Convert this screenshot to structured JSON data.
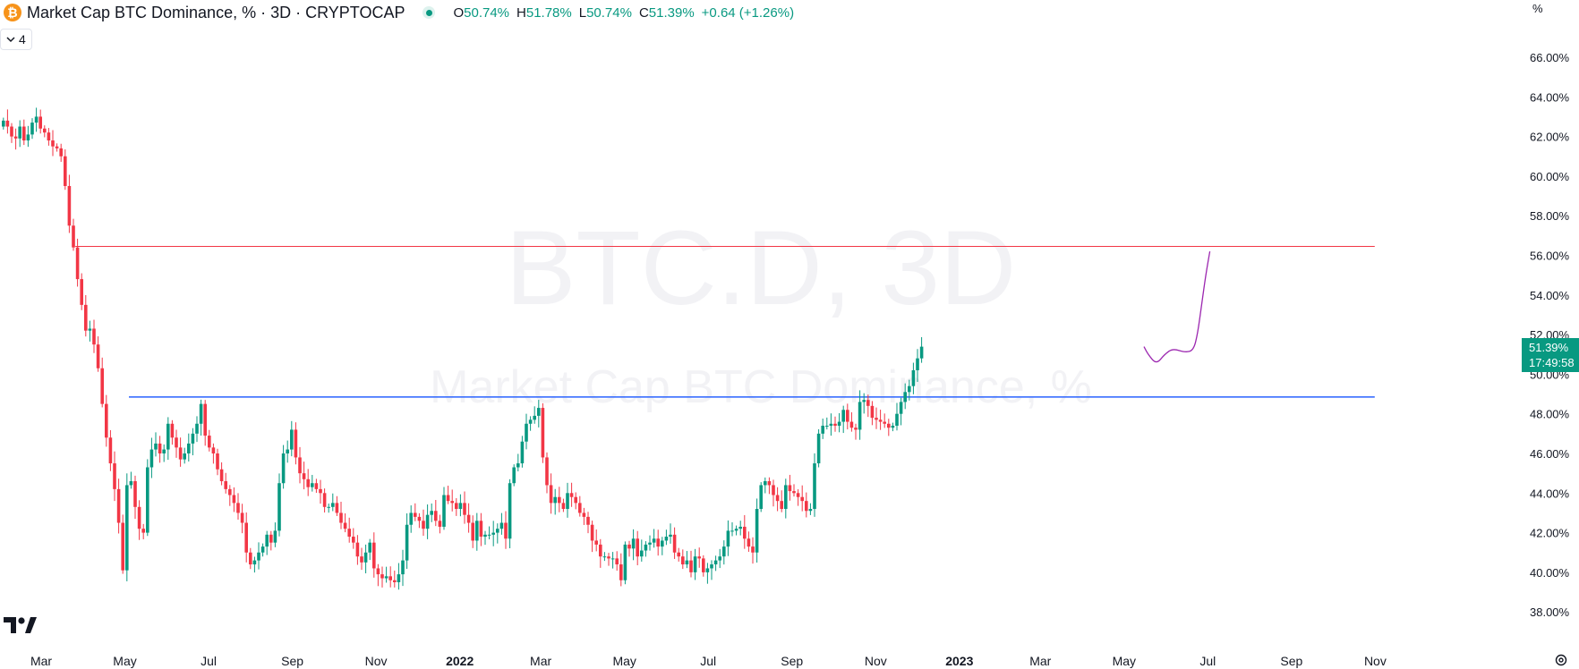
{
  "header": {
    "symbol_icon": "bitcoin-icon",
    "symbol_glyph": "₿",
    "title": "Market Cap BTC Dominance, % · 3D · CRYPTOCAP",
    "ohlc": {
      "o_label": "O",
      "o_value": "50.74%",
      "h_label": "H",
      "h_value": "51.78%",
      "l_label": "L",
      "l_value": "50.74%",
      "c_label": "C",
      "c_value": "51.39%",
      "change": "+0.64 (+1.26%)"
    },
    "collapse_count": "4"
  },
  "watermark": {
    "line1": "BTC.D, 3D",
    "line2": "Market Cap BTC Dominance, %"
  },
  "axis": {
    "unit_label": "%",
    "price_tag": "51.39%",
    "countdown": "17:49:58"
  },
  "colors": {
    "up": "#089981",
    "down": "#f23645",
    "blue_line": "#2962ff",
    "red_line": "#f23645",
    "projection": "#9c27b0"
  },
  "chart_data": {
    "type": "candlestick",
    "title": "Market Cap BTC Dominance, % · 3D · CRYPTOCAP",
    "y_axis": {
      "ticks": [
        "38.00%",
        "40.00%",
        "42.00%",
        "44.00%",
        "46.00%",
        "48.00%",
        "50.00%",
        "52.00%",
        "54.00%",
        "56.00%",
        "58.00%",
        "60.00%",
        "62.00%",
        "64.00%",
        "66.00%"
      ],
      "range": [
        37.2,
        68.2
      ]
    },
    "x_axis": {
      "labels": [
        "Mar",
        "May",
        "Jul",
        "Sep",
        "Nov",
        "2022",
        "Mar",
        "May",
        "Jul",
        "Sep",
        "Nov",
        "2023",
        "Mar",
        "May",
        "Jul",
        "Sep",
        "Nov"
      ],
      "bold_labels": [
        "2022",
        "2023"
      ],
      "label_index_positions": [
        0,
        20.33,
        40.67,
        61,
        81.33,
        101.67,
        121.33,
        141.67,
        162,
        182.33,
        202.67,
        223,
        242.67,
        263,
        283.33,
        303.67,
        324
      ]
    },
    "last_index": 277,
    "close_series": [
      62.8,
      62.5,
      62.0,
      61.9,
      62.5,
      61.8,
      62.1,
      62.7,
      63.0,
      62.4,
      62.2,
      61.8,
      61.5,
      61.4,
      61.0,
      59.5,
      57.5,
      56.4,
      54.8,
      53.5,
      52.2,
      52.3,
      51.5,
      50.3,
      48.5,
      46.8,
      45.5,
      44.2,
      42.5,
      40.1,
      44.4,
      44.6,
      43.3,
      42.2,
      42.0,
      45.3,
      46.2,
      46.5,
      46.0,
      46.2,
      47.5,
      46.8,
      46.3,
      45.7,
      46.0,
      46.5,
      47.0,
      47.5,
      48.5,
      46.9,
      46.3,
      46.0,
      45.2,
      44.6,
      44.2,
      43.9,
      43.5,
      43.0,
      42.5,
      41.0,
      40.4,
      40.6,
      41.0,
      41.3,
      41.9,
      41.5,
      42.1,
      44.5,
      46.0,
      46.2,
      47.2,
      45.8,
      45.0,
      44.7,
      44.3,
      44.5,
      44.2,
      44.0,
      43.3,
      43.3,
      43.5,
      43.0,
      42.5,
      42.2,
      41.8,
      41.5,
      40.8,
      40.5,
      41.0,
      41.5,
      40.2,
      39.9,
      39.7,
      39.8,
      39.6,
      39.5,
      39.9,
      40.6,
      42.4,
      43.0,
      42.8,
      42.6,
      42.2,
      42.9,
      43.1,
      42.6,
      42.3,
      43.9,
      43.6,
      43.5,
      43.2,
      43.5,
      42.9,
      42.5,
      41.6,
      42.6,
      41.8,
      41.9,
      41.9,
      42.0,
      42.2,
      42.5,
      41.7,
      44.5,
      45.3,
      45.5,
      46.6,
      47.5,
      47.7,
      47.9,
      48.3,
      45.8,
      44.4,
      43.5,
      43.8,
      43.5,
      43.2,
      44.0,
      43.8,
      43.5,
      43.0,
      42.8,
      42.4,
      41.6,
      41.4,
      40.8,
      40.8,
      40.7,
      40.7,
      40.4,
      39.6,
      41.4,
      41.2,
      41.7,
      40.8,
      41.1,
      41.4,
      41.5,
      41.7,
      41.3,
      41.6,
      41.8,
      41.9,
      41.0,
      40.8,
      40.4,
      40.6,
      40.0,
      40.8,
      40.7,
      40.0,
      40.2,
      40.4,
      40.6,
      40.8,
      41.3,
      42.1,
      42.1,
      42.2,
      42.3,
      41.7,
      41.3,
      41.0,
      43.2,
      44.4,
      44.6,
      44.4,
      43.9,
      43.6,
      43.2,
      44.4,
      44.1,
      44.0,
      43.8,
      43.6,
      43.1,
      43.2,
      45.5,
      47.0,
      47.4,
      47.4,
      47.5,
      47.4,
      47.6,
      48.2,
      47.6,
      47.3,
      47.2,
      48.6,
      48.7,
      48.4,
      47.8,
      47.7,
      47.6,
      47.5,
      47.3,
      47.4,
      48.0,
      48.6,
      49.1,
      49.4,
      50.2,
      50.8,
      51.39
    ],
    "projection_path_values": [
      [
        277,
        51.39
      ],
      [
        278,
        51.0
      ],
      [
        280,
        50.5
      ],
      [
        282,
        51.0
      ],
      [
        284,
        51.3
      ],
      [
        287,
        51.1
      ],
      [
        289,
        51.2
      ],
      [
        290,
        52.0
      ],
      [
        291,
        53.5
      ],
      [
        292,
        55.0
      ],
      [
        293,
        56.2
      ]
    ],
    "horizontal_lines": [
      {
        "name": "resistance-red",
        "value": 56.45,
        "from_index": 17,
        "to_index": 323
      },
      {
        "name": "support-blue",
        "value": 48.85,
        "from_index": 30,
        "to_index": 323
      }
    ]
  }
}
